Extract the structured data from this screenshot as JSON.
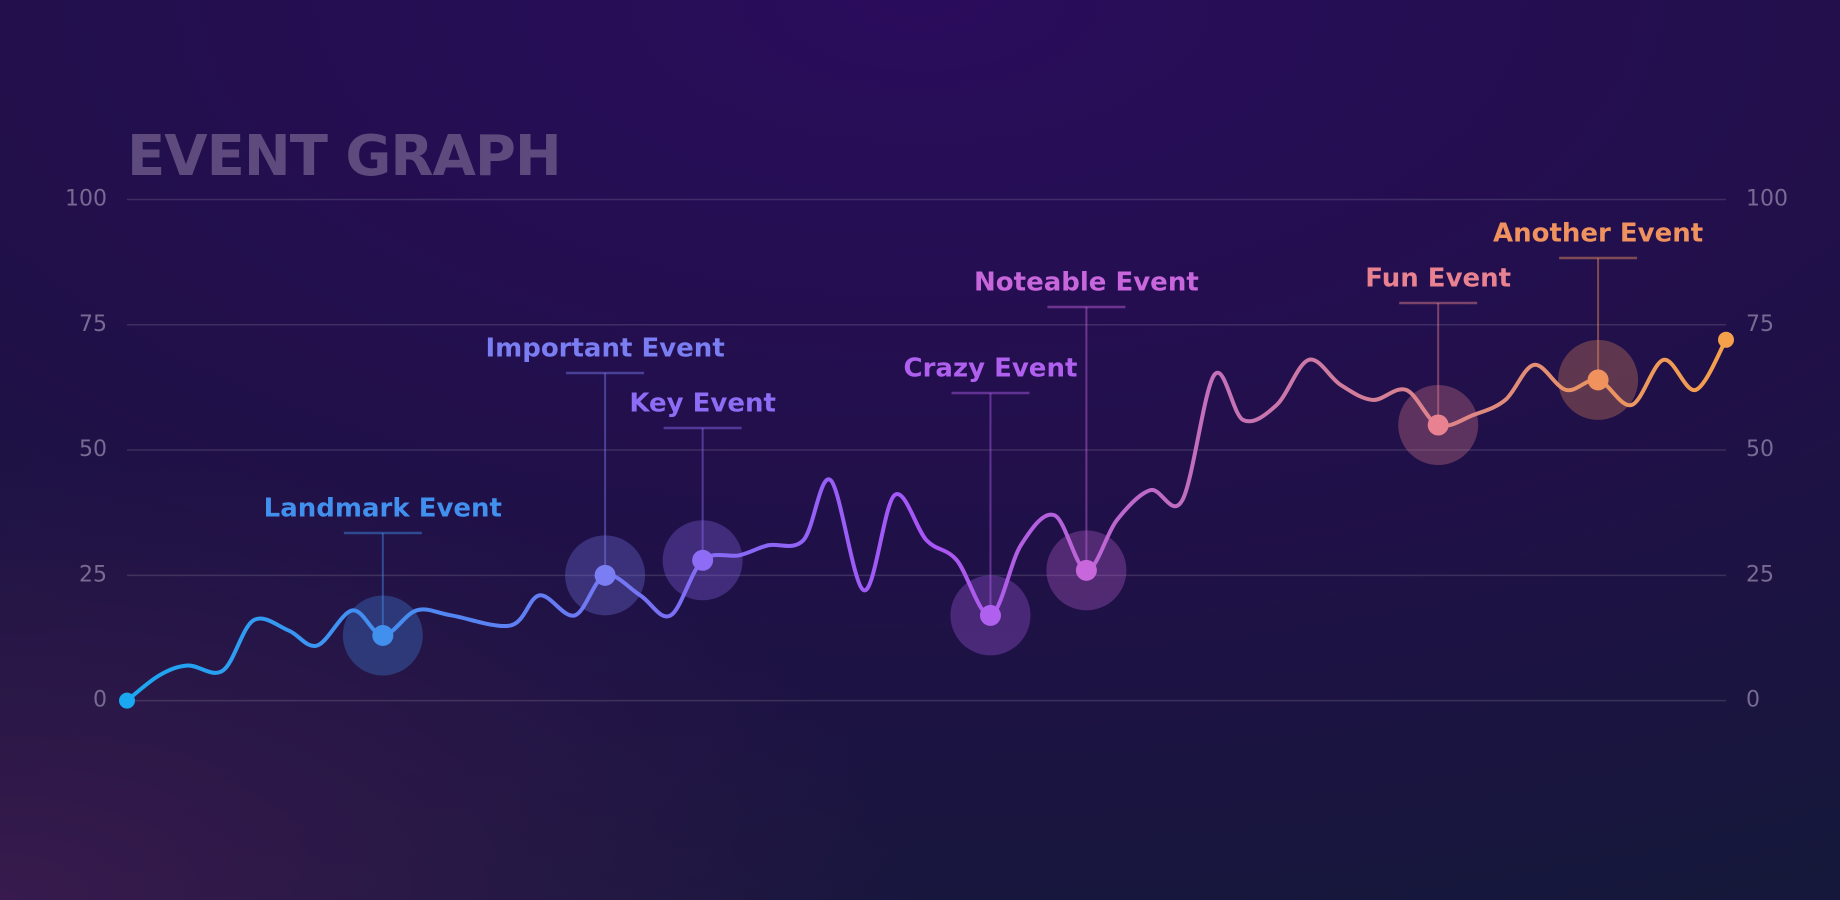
{
  "chart_data": {
    "type": "line",
    "title": "EVENT GRAPH",
    "x": [
      0,
      2.0,
      3.8,
      6.0,
      7.9,
      10.1,
      11.9,
      14.1,
      16.0,
      18.1,
      20.3,
      24.0,
      25.8,
      28.0,
      29.9,
      32.1,
      34.0,
      36.0,
      38.3,
      40.1,
      42.3,
      44.0,
      46.1,
      48.0,
      50.0,
      51.9,
      54.0,
      55.9,
      58.0,
      60.0,
      61.9,
      64.0,
      66.0,
      68.0,
      69.8,
      71.9,
      73.9,
      75.9,
      77.9,
      80.0,
      82.0,
      84.2,
      86.2,
      88.0,
      90.0,
      92.0,
      94.1,
      96.1,
      98.1,
      100
    ],
    "values": [
      0,
      5,
      7,
      6,
      16,
      14,
      11,
      18,
      13,
      18,
      17,
      15,
      21,
      17,
      25,
      21,
      17,
      28,
      29,
      31,
      32,
      44,
      22,
      41,
      32,
      28,
      17,
      31,
      37,
      26,
      36,
      42,
      40,
      65,
      56,
      59,
      68,
      63,
      60,
      62,
      55,
      57,
      60,
      67,
      62,
      64,
      59,
      68,
      62,
      72
    ],
    "line_colors": [
      "#1aa8f0",
      "#a855f7",
      "#f5a04a"
    ],
    "xlim": [
      0,
      100
    ],
    "ylim": [
      0,
      100
    ],
    "yticks": [
      0,
      25,
      50,
      75,
      100
    ],
    "grid": true,
    "annotations": [
      {
        "label": "Landmark Event",
        "x": 16.0,
        "value": 13,
        "color": "#4290ee"
      },
      {
        "label": "Important Event",
        "x": 29.9,
        "value": 25,
        "color": "#7a7ef2"
      },
      {
        "label": "Key Event",
        "x": 36.0,
        "value": 28,
        "color": "#8f6cf5"
      },
      {
        "label": "Crazy Event",
        "x": 54.0,
        "value": 17,
        "color": "#b060ee"
      },
      {
        "label": "Noteable Event",
        "x": 60.0,
        "value": 26,
        "color": "#c866dc"
      },
      {
        "label": "Fun Event",
        "x": 82.0,
        "value": 55,
        "color": "#e88290"
      },
      {
        "label": "Another Event",
        "x": 92.0,
        "value": 64,
        "color": "#f0925e"
      }
    ]
  }
}
